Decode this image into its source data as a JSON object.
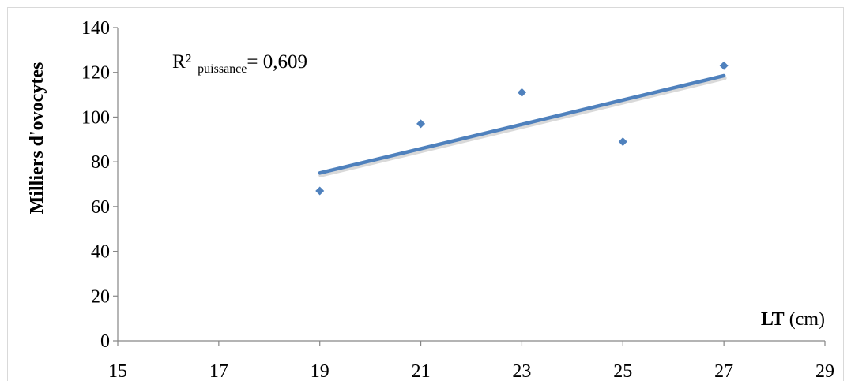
{
  "chart_data": {
    "type": "scatter",
    "x": [
      19,
      21,
      23,
      25,
      27
    ],
    "y": [
      67,
      97,
      111,
      89,
      123
    ],
    "trendline": {
      "type": "power",
      "x_range": [
        19,
        27
      ],
      "y_range": [
        75,
        118.5
      ]
    },
    "xlabel_bold": "LT",
    "xlabel_unit": "(cm)",
    "ylabel": "Milliers d'ovocytes",
    "xlim": [
      15,
      29
    ],
    "ylim": [
      0,
      140
    ],
    "x_ticks": [
      "15",
      "17",
      "19",
      "21",
      "23",
      "25",
      "27",
      "29"
    ],
    "y_ticks": [
      "0",
      "20",
      "40",
      "60",
      "80",
      "100",
      "120",
      "140"
    ],
    "annotation": {
      "prefix": "R²",
      "subscript": "puissance",
      "suffix": "= 0,609"
    },
    "grid": false,
    "colors": {
      "marker": "#4f81bd",
      "trendline": "#4f81bd",
      "axis": "#868686"
    }
  }
}
